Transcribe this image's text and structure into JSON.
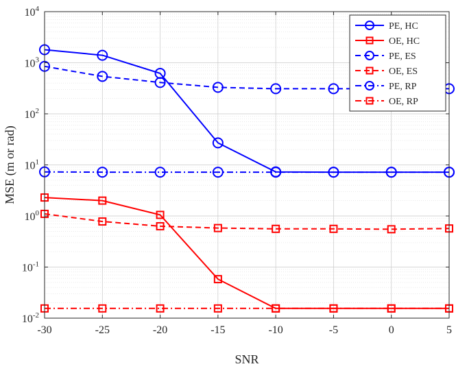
{
  "chart_data": {
    "type": "line",
    "xlabel": "SNR",
    "ylabel": "MSE (m or rad)",
    "yscale": "log",
    "xlim": [
      -30,
      5
    ],
    "ylim": [
      0.01,
      10000
    ],
    "grid": true,
    "legend_position": "top-right",
    "x_ticks": [
      "-30",
      "-25",
      "-20",
      "-15",
      "-10",
      "-5",
      "0",
      "5"
    ],
    "y_ticks": [
      {
        "base": "10",
        "exp": "-2"
      },
      {
        "base": "10",
        "exp": "-1"
      },
      {
        "base": "10",
        "exp": "0"
      },
      {
        "base": "10",
        "exp": "1"
      },
      {
        "base": "10",
        "exp": "2"
      },
      {
        "base": "10",
        "exp": "3"
      },
      {
        "base": "10",
        "exp": "4"
      }
    ],
    "x": [
      -30,
      -25,
      -20,
      -15,
      -10,
      -5,
      0,
      5
    ],
    "series": [
      {
        "name": "PE, HC",
        "color": "#0000ff",
        "dash": "solid",
        "marker": "circle",
        "values": [
          1800,
          1400,
          620,
          27,
          7.3,
          7.2,
          7.2,
          7.2
        ]
      },
      {
        "name": "OE, HC",
        "color": "#ff0000",
        "dash": "solid",
        "marker": "square",
        "values": [
          2.3,
          2.0,
          1.05,
          0.058,
          0.0155,
          0.0155,
          0.0155,
          0.0155
        ]
      },
      {
        "name": "PE, ES",
        "color": "#0000ff",
        "dash": "dashed",
        "marker": "circle",
        "values": [
          850,
          540,
          410,
          330,
          310,
          310,
          null,
          310
        ]
      },
      {
        "name": "OE, ES",
        "color": "#ff0000",
        "dash": "dashed",
        "marker": "square",
        "values": [
          1.1,
          0.78,
          0.63,
          0.58,
          0.56,
          0.56,
          0.55,
          0.57
        ]
      },
      {
        "name": "PE, RP",
        "color": "#0000ff",
        "dash": "dashdot",
        "marker": "circle",
        "values": [
          7.3,
          7.2,
          7.2,
          7.2,
          7.2,
          7.2,
          7.2,
          7.2
        ]
      },
      {
        "name": "OE, RP",
        "color": "#ff0000",
        "dash": "dashdot",
        "marker": "square",
        "values": [
          0.0155,
          0.0155,
          0.0155,
          0.0155,
          0.0155,
          0.0155,
          0.0155,
          0.0155
        ]
      }
    ]
  }
}
